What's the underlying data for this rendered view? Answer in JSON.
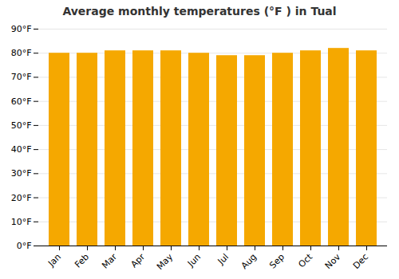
{
  "chart_data": {
    "type": "bar",
    "title": "Average monthly temperatures (°F ) in Tual",
    "categories": [
      "Jan",
      "Feb",
      "Mar",
      "Apr",
      "May",
      "Jun",
      "Jul",
      "Aug",
      "Sep",
      "Oct",
      "Nov",
      "Dec"
    ],
    "values": [
      80,
      80,
      81,
      81,
      81,
      80,
      79,
      79,
      80,
      81,
      82,
      81
    ],
    "color": "#F5A800",
    "ylim": [
      0,
      90
    ],
    "yticks": [
      {
        "value": 0,
        "label": "0°F"
      },
      {
        "value": 10,
        "label": "10°F"
      },
      {
        "value": 20,
        "label": "20°F"
      },
      {
        "value": 30,
        "label": "30°F"
      },
      {
        "value": 40,
        "label": "40°F"
      },
      {
        "value": 50,
        "label": "50°F"
      },
      {
        "value": 60,
        "label": "60°F"
      },
      {
        "value": 70,
        "label": "70°F"
      },
      {
        "value": 80,
        "label": "80°F"
      },
      {
        "value": 90,
        "label": "90°F"
      }
    ],
    "grid": true
  }
}
